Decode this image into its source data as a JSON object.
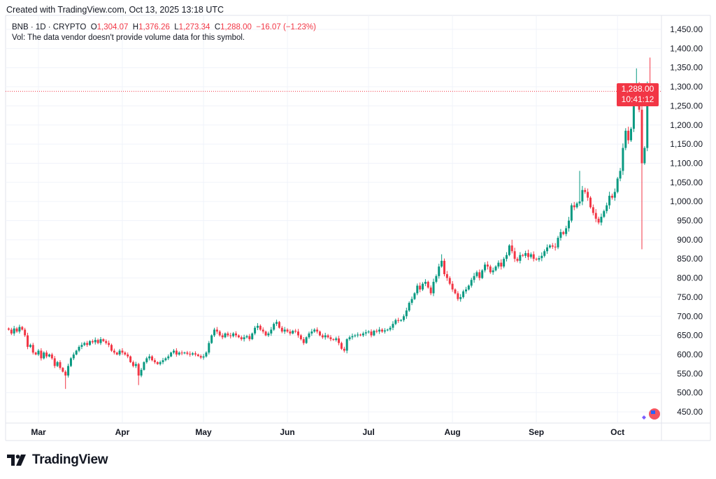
{
  "header": {
    "created": "Created with TradingView.com, Oct 13, 2025 13:18 UTC",
    "symbol": "BNB · 1D · CRYPTO",
    "o_label": "O",
    "o": "1,304.07",
    "h_label": "H",
    "h": "1,376.26",
    "l_label": "L",
    "l": "1,273.34",
    "c_label": "C",
    "c": "1,288.00",
    "change": "−16.07 (−1.23%)",
    "vol_note": "Vol: The data vendor doesn't provide volume data for this symbol."
  },
  "price_tag": {
    "price": "1,288.00",
    "countdown": "10:41:12"
  },
  "logo": {
    "text": "TradingView"
  },
  "colors": {
    "up": "#089981",
    "down": "#f23645",
    "grid": "#f0f3fa",
    "text": "#131722"
  },
  "chart_data": {
    "type": "candlestick",
    "symbol": "BNB",
    "interval": "1D",
    "first_date": "2025-02-18",
    "last_date": "2025-10-13",
    "ylim": [
      430,
      1470
    ],
    "y_ticks": [
      "450.00",
      "500.00",
      "550.00",
      "600.00",
      "650.00",
      "700.00",
      "750.00",
      "800.00",
      "850.00",
      "900.00",
      "950.00",
      "1,000.00",
      "1,050.00",
      "1,100.00",
      "1,150.00",
      "1,200.00",
      "1,250.00",
      "1,300.00",
      "1,350.00",
      "1,400.00",
      "1,450.00"
    ],
    "y_tick_values": [
      450,
      500,
      550,
      600,
      650,
      700,
      750,
      800,
      850,
      900,
      950,
      1000,
      1050,
      1100,
      1150,
      1200,
      1250,
      1300,
      1350,
      1400,
      1450
    ],
    "x_ticks": [
      {
        "label": "Mar",
        "day": 11
      },
      {
        "label": "Apr",
        "day": 42
      },
      {
        "label": "May",
        "day": 72
      },
      {
        "label": "Jun",
        "day": 103
      },
      {
        "label": "Jul",
        "day": 133
      },
      {
        "label": "Aug",
        "day": 164
      },
      {
        "label": "Sep",
        "day": 195
      },
      {
        "label": "Oct",
        "day": 225
      }
    ],
    "first_open": 668,
    "wick_pct": 0.008,
    "closes": [
      665,
      655,
      668,
      660,
      672,
      665,
      650,
      620,
      625,
      605,
      600,
      610,
      590,
      605,
      595,
      600,
      590,
      570,
      580,
      565,
      555,
      545,
      570,
      590,
      600,
      610,
      620,
      625,
      630,
      625,
      635,
      632,
      638,
      630,
      640,
      635,
      630,
      625,
      610,
      605,
      600,
      610,
      605,
      600,
      595,
      580,
      570,
      575,
      545,
      560,
      580,
      590,
      595,
      585,
      580,
      575,
      580,
      585,
      590,
      595,
      605,
      610,
      600,
      605,
      603,
      605,
      602,
      600,
      603,
      600,
      596,
      592,
      595,
      605,
      630,
      650,
      665,
      660,
      650,
      645,
      655,
      650,
      648,
      655,
      650,
      645,
      640,
      645,
      648,
      640,
      655,
      670,
      675,
      665,
      660,
      650,
      655,
      665,
      680,
      685,
      670,
      660,
      665,
      660,
      655,
      662,
      660,
      650,
      640,
      630,
      645,
      655,
      660,
      665,
      660,
      650,
      645,
      650,
      645,
      640,
      638,
      642,
      630,
      615,
      610,
      640,
      645,
      648,
      650,
      652,
      650,
      655,
      658,
      660,
      650,
      662,
      660,
      665,
      660,
      663,
      665,
      670,
      680,
      690,
      688,
      690,
      700,
      715,
      735,
      745,
      760,
      780,
      770,
      785,
      790,
      775,
      760,
      790,
      805,
      830,
      845,
      810,
      800,
      785,
      770,
      760,
      745,
      750,
      765,
      770,
      780,
      795,
      805,
      815,
      800,
      820,
      835,
      830,
      815,
      820,
      830,
      840,
      830,
      850,
      860,
      885,
      870,
      850,
      845,
      860,
      858,
      865,
      855,
      862,
      850,
      848,
      852,
      858,
      870,
      880,
      885,
      882,
      880,
      905,
      920,
      915,
      930,
      950,
      990,
      985,
      995,
      1000,
      1030,
      1025,
      1010,
      985,
      970,
      955,
      945,
      960,
      975,
      990,
      1015,
      1010,
      1025,
      1060,
      1080,
      1140,
      1185,
      1160,
      1190,
      1300,
      1305,
      1240,
      1100,
      1140,
      1304,
      1288
    ],
    "notable_wicks": [
      {
        "day": 21,
        "low": 510
      },
      {
        "day": 48,
        "low": 520
      },
      {
        "day": 125,
        "low": 603
      },
      {
        "day": 160,
        "high": 862
      },
      {
        "day": 186,
        "high": 900
      },
      {
        "day": 211,
        "high": 1080
      },
      {
        "day": 232,
        "high": 1348
      },
      {
        "day": 234,
        "low": 875
      },
      {
        "day": 237,
        "open": 1304.07,
        "high": 1376.26,
        "low": 1273.34,
        "close": 1288.0
      }
    ],
    "last_price": 1288.0
  }
}
